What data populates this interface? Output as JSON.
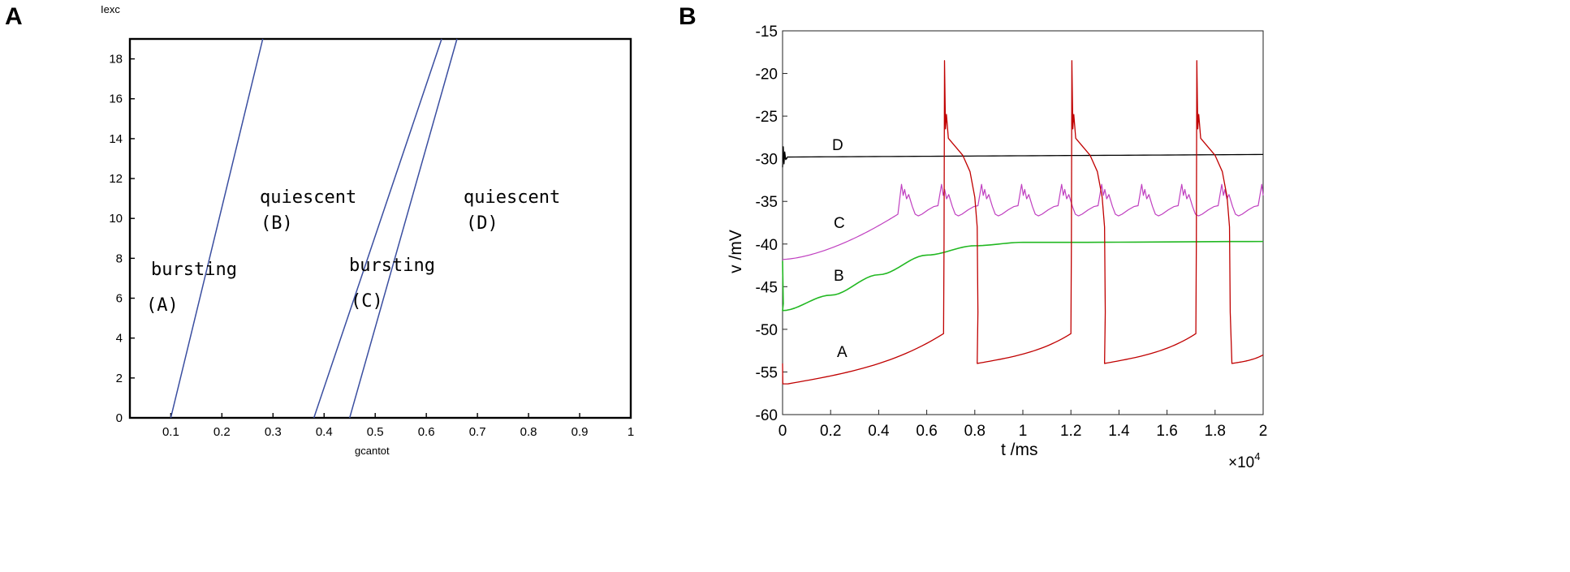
{
  "colors": {
    "A": "#c00000",
    "B": "#22b822",
    "C": "#c040c0",
    "D": "#000000",
    "boundary": "#3a4ea0"
  },
  "chart_data": [
    {
      "panel": "A",
      "type": "line",
      "xlabel": "gcantot",
      "ylabel": "Iexc",
      "xlim": [
        0.02,
        1.0
      ],
      "ylim": [
        0,
        19
      ],
      "xticks": [
        0.1,
        0.2,
        0.3,
        0.4,
        0.5,
        0.6,
        0.7,
        0.8,
        0.9,
        1
      ],
      "yticks": [
        0,
        2,
        4,
        6,
        8,
        10,
        12,
        14,
        16,
        18
      ],
      "boundaries": [
        {
          "x": [
            0.1,
            0.28
          ],
          "y": [
            0,
            19
          ]
        },
        {
          "x": [
            0.38,
            0.63
          ],
          "y": [
            0,
            19
          ]
        },
        {
          "x": [
            0.45,
            0.66
          ],
          "y": [
            0,
            19
          ]
        }
      ],
      "regions": [
        {
          "label": "bursting",
          "tag": "(A)"
        },
        {
          "label": "quiescent",
          "tag": "(B)"
        },
        {
          "label": "bursting",
          "tag": "(C)"
        },
        {
          "label": "quiescent",
          "tag": "(D)"
        }
      ]
    },
    {
      "panel": "B",
      "type": "line",
      "xlabel": "t /ms",
      "ylabel": "v /mV",
      "x_multiplier": "×10",
      "x_multiplier_exp": "4",
      "xlim": [
        0,
        2
      ],
      "ylim": [
        -60,
        -15
      ],
      "xticks": [
        0,
        0.2,
        0.4,
        0.6,
        0.8,
        1,
        1.2,
        1.4,
        1.6,
        1.8,
        2
      ],
      "yticks": [
        -15,
        -20,
        -25,
        -30,
        -35,
        -40,
        -45,
        -50,
        -55,
        -60
      ],
      "series": [
        {
          "name": "A",
          "x": [
            0,
            0.67,
            0.81,
            1.2,
            1.34,
            1.72,
            1.87,
            2.0
          ],
          "y": [
            -56.5,
            -50.5,
            -54,
            -50.5,
            -54,
            -50.5,
            -54,
            -53
          ]
        },
        {
          "name": "B",
          "x": [
            0,
            0.2,
            0.4,
            0.6,
            0.8,
            1.0,
            1.2,
            2.0
          ],
          "y": [
            -47.8,
            -46.0,
            -43.6,
            -41.3,
            -40.2,
            -39.8,
            -39.8,
            -39.7
          ]
        },
        {
          "name": "C",
          "x": [
            0,
            0.3,
            0.48,
            2.0
          ],
          "y": [
            -41.8,
            -39.6,
            -36.5,
            -35.5
          ]
        },
        {
          "name": "D",
          "x": [
            0,
            2
          ],
          "y": [
            -29.8,
            -29.5
          ]
        }
      ]
    }
  ]
}
